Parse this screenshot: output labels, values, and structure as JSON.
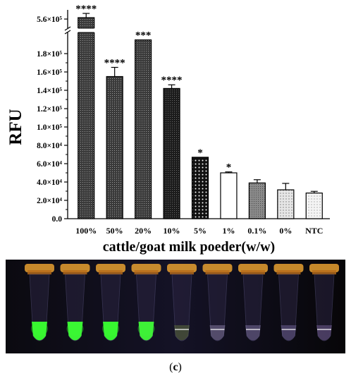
{
  "chart_data": {
    "type": "bar",
    "ylabel": "RFU",
    "xlabel": "cattle/goat milk poeder(w/w)",
    "ylim": [
      0,
      200000
    ],
    "axis_break": {
      "lower_max": 200000,
      "upper_tick_value": 560000
    },
    "yticks": [
      {
        "value": 0,
        "label": "0.0"
      },
      {
        "value": 20000,
        "label": "2.0×10⁴"
      },
      {
        "value": 40000,
        "label": "4.0×10⁴"
      },
      {
        "value": 60000,
        "label": "6.0×10⁴"
      },
      {
        "value": 80000,
        "label": "8.0×10⁴"
      },
      {
        "value": 100000,
        "label": "1.0×10⁵"
      },
      {
        "value": 120000,
        "label": "1.2×10⁵"
      },
      {
        "value": 140000,
        "label": "1.4×10⁵"
      },
      {
        "value": 160000,
        "label": "1.6×10⁵"
      },
      {
        "value": 180000,
        "label": "1.8×10⁵"
      }
    ],
    "upper_tick_label": "5.6×10⁵",
    "categories": [
      "100%",
      "50%",
      "20%",
      "10%",
      "5%",
      "1%",
      "0.1%",
      "0%",
      "NTC"
    ],
    "values": [
      560000,
      155000,
      195000,
      142000,
      67000,
      50000,
      39000,
      31500,
      28000
    ],
    "errors": [
      8000,
      10000,
      0,
      4000,
      0,
      1000,
      3500,
      7000,
      1800
    ],
    "significance": [
      "****",
      "****",
      "***",
      "****",
      "*",
      "*",
      "",
      "",
      ""
    ],
    "bar_colors": [
      "#3a3a3a",
      "#3d3d3d",
      "#2f2f2f",
      "#1a1a1a",
      "#111111",
      "#ffffff",
      "#8a8a8a",
      "#d2d2d2",
      "#f2f2f2"
    ],
    "bar_patterns": [
      "dots-dense",
      "dots-dense",
      "dots-dense",
      "dots-dense",
      "dots-white",
      "none",
      "dots-dense",
      "dots-sparse",
      "dots-sparse"
    ]
  },
  "photo": {
    "tube_colors": [
      "#3aff30",
      "#3cff35",
      "#38ff30",
      "#40f838",
      "#7d9840",
      "#b8a8d8",
      "#a898d0",
      "#9888c8",
      "#a080c8"
    ]
  },
  "caption": {
    "open": "(",
    "letter": "c",
    "close": ")"
  }
}
